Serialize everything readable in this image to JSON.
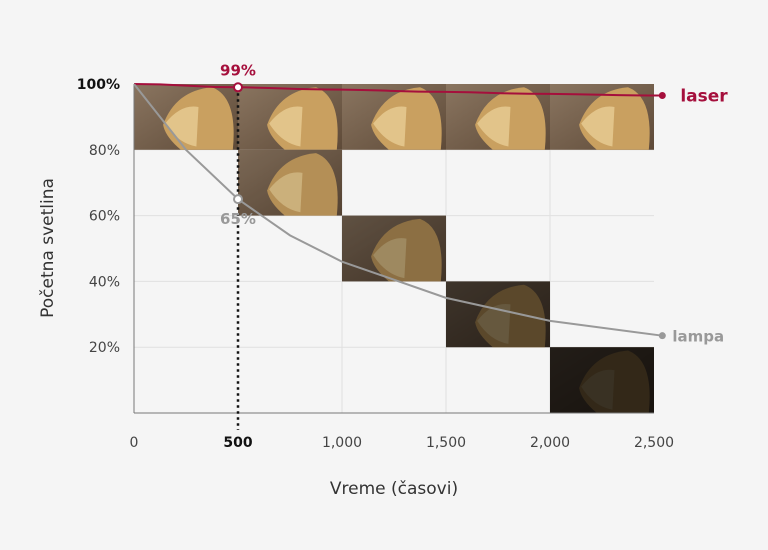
{
  "chart_data": {
    "type": "line",
    "xlabel": "Vreme (časovi)",
    "ylabel": "Početna svetlina",
    "xlim": [
      0,
      2500
    ],
    "ylim": [
      0,
      100
    ],
    "x_ticks": [
      "0",
      "500",
      "1,000",
      "1,500",
      "2,000",
      "2,500"
    ],
    "y_ticks": [
      "20%",
      "40%",
      "60%",
      "80%",
      "100%"
    ],
    "grid": true,
    "highlight_x": 500,
    "series": [
      {
        "name": "laser",
        "color": "#a50f3c",
        "x": [
          0,
          500,
          1000,
          1500,
          2000,
          2540
        ],
        "y": [
          100,
          99,
          98.3,
          97.6,
          97,
          96.5
        ]
      },
      {
        "name": "lampa",
        "color": "#999999",
        "x": [
          0,
          250,
          500,
          750,
          1000,
          1500,
          2000,
          2540
        ],
        "y": [
          100,
          80,
          65,
          54,
          46,
          35,
          28,
          23.5
        ]
      }
    ],
    "annotations": [
      {
        "text": "99%",
        "x": 500,
        "y": 99,
        "color": "#a50f3c"
      },
      {
        "text": "65%",
        "x": 500,
        "y": 65,
        "color": "#999999"
      }
    ],
    "image_tiles": [
      {
        "x0": 0,
        "x1": 500,
        "y0": 80,
        "y1": 100,
        "brightness": 1
      },
      {
        "x0": 500,
        "x1": 1000,
        "y0": 80,
        "y1": 100,
        "brightness": 1
      },
      {
        "x0": 500,
        "x1": 1000,
        "y0": 60,
        "y1": 80,
        "brightness": 0.9
      },
      {
        "x0": 1000,
        "x1": 1500,
        "y0": 80,
        "y1": 100,
        "brightness": 1
      },
      {
        "x0": 1000,
        "x1": 1500,
        "y0": 40,
        "y1": 60,
        "brightness": 0.7
      },
      {
        "x0": 1500,
        "x1": 2000,
        "y0": 80,
        "y1": 100,
        "brightness": 1
      },
      {
        "x0": 1500,
        "x1": 2000,
        "y0": 20,
        "y1": 40,
        "brightness": 0.45
      },
      {
        "x0": 2000,
        "x1": 2500,
        "y0": 80,
        "y1": 100,
        "brightness": 1
      },
      {
        "x0": 2000,
        "x1": 2500,
        "y0": 0,
        "y1": 20,
        "brightness": 0.25
      }
    ]
  }
}
